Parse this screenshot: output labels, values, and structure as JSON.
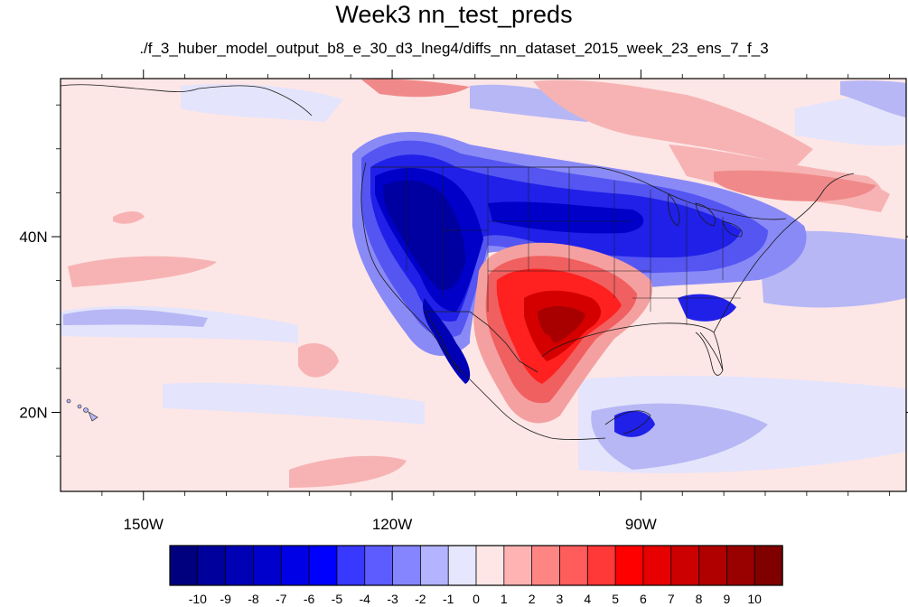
{
  "title": "Week3 nn_test_preds",
  "subtitle": "./f_3_huber_model_output_b8_e_30_d3_lneg4/diffs_nn_dataset_2015_week_23_ens_7_f_3",
  "map": {
    "lon_range": [
      -160,
      -58
    ],
    "lat_range": [
      11,
      58
    ],
    "lon_ticks": [
      {
        "value": -150,
        "label": "150W"
      },
      {
        "value": -120,
        "label": "120W"
      },
      {
        "value": -90,
        "label": "90W"
      }
    ],
    "lat_ticks": [
      {
        "value": 40,
        "label": "40N"
      },
      {
        "value": 20,
        "label": "20N"
      }
    ],
    "lon_minor": [
      -155,
      -145,
      -140,
      -135,
      -130,
      -125,
      -115,
      -110,
      -105,
      -100,
      -95,
      -85,
      -80,
      -75,
      -70,
      -65,
      -60
    ],
    "lat_minor": [
      15,
      25,
      30,
      35,
      45,
      50,
      55
    ]
  },
  "colorbar": {
    "levels": [
      "-10",
      "-9",
      "-8",
      "-7",
      "-6",
      "-5",
      "-4",
      "-3",
      "-2",
      "-1",
      "0",
      "1",
      "2",
      "3",
      "4",
      "5",
      "6",
      "7",
      "8",
      "9",
      "10"
    ],
    "colors": [
      "#00007f",
      "#00009c",
      "#0000b5",
      "#0000cc",
      "#0000e6",
      "#0000ff",
      "#3838ff",
      "#5c5cff",
      "#8585ff",
      "#b3b3ff",
      "#e6e6ff",
      "#ffe6e6",
      "#ffb3b3",
      "#ff8585",
      "#ff5c5c",
      "#ff3838",
      "#ff0000",
      "#e60000",
      "#cc0000",
      "#b00000",
      "#990000",
      "#800000"
    ]
  }
}
